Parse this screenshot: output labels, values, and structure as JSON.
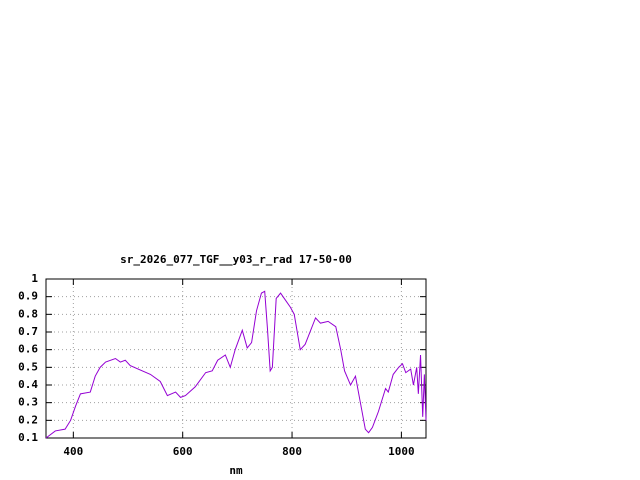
{
  "chart_data": {
    "type": "line",
    "title": "sr_2026_077_TGF__y03_r_rad 17-50-00",
    "x_label": "nm",
    "x": [
      350,
      367,
      385,
      395,
      404,
      413,
      431,
      440,
      449,
      459,
      477,
      486,
      495,
      504,
      541,
      559,
      572,
      587,
      596,
      605,
      623,
      642,
      654,
      664,
      678,
      687,
      696,
      709,
      718,
      726,
      735,
      744,
      750,
      755,
      760,
      764,
      771,
      779,
      788,
      797,
      804,
      815,
      824,
      843,
      852,
      866,
      880,
      889,
      896,
      907,
      916,
      925,
      934,
      940,
      947,
      958,
      971,
      976,
      985,
      995,
      1002,
      1008,
      1017,
      1022,
      1028,
      1031,
      1035,
      1039,
      1042,
      1045
    ],
    "series": [
      {
        "color": "#9400d3",
        "values": [
          0.1,
          0.14,
          0.15,
          0.2,
          0.28,
          0.35,
          0.36,
          0.45,
          0.5,
          0.53,
          0.55,
          0.53,
          0.54,
          0.51,
          0.46,
          0.42,
          0.34,
          0.36,
          0.33,
          0.34,
          0.39,
          0.47,
          0.48,
          0.54,
          0.57,
          0.5,
          0.6,
          0.71,
          0.61,
          0.64,
          0.82,
          0.92,
          0.93,
          0.72,
          0.48,
          0.5,
          0.89,
          0.92,
          0.88,
          0.84,
          0.8,
          0.6,
          0.63,
          0.78,
          0.75,
          0.76,
          0.73,
          0.6,
          0.48,
          0.4,
          0.45,
          0.3,
          0.15,
          0.13,
          0.16,
          0.25,
          0.38,
          0.36,
          0.46,
          0.5,
          0.52,
          0.47,
          0.49,
          0.4,
          0.5,
          0.35,
          0.57,
          0.22,
          0.46,
          0.2
        ]
      }
    ],
    "xlim": [
      350,
      1045
    ],
    "ylim": [
      0.1,
      1
    ],
    "xticks": [
      400,
      600,
      800,
      1000
    ],
    "yticks": [
      0.1,
      0.2,
      0.3,
      0.4,
      0.5,
      0.6,
      0.7,
      0.8,
      0.9,
      1
    ],
    "grid": true
  }
}
